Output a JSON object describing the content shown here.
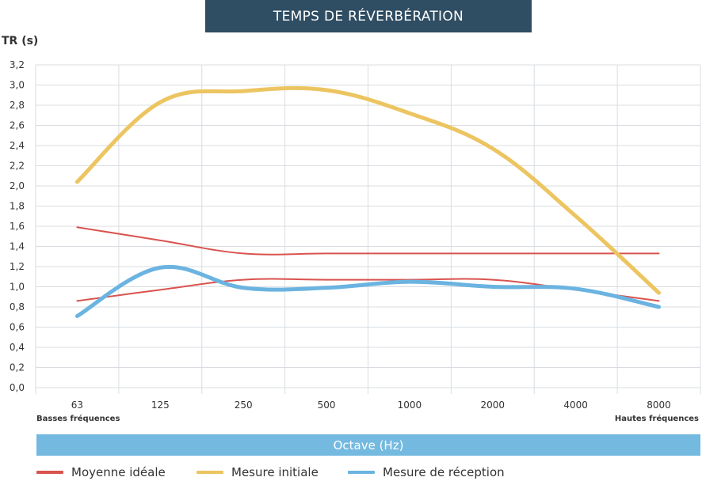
{
  "chart_data": {
    "type": "line",
    "title": "TEMPS DE RÉVERBÉRATION",
    "ylabel": "TR (s)",
    "xlabel": "Octave (Hz)",
    "x_note_left": "Basses fréquences",
    "x_note_right": "Hautes fréquences",
    "categories": [
      "63",
      "125",
      "250",
      "500",
      "1000",
      "2000",
      "4000",
      "8000"
    ],
    "ylim": [
      0,
      3.2
    ],
    "yticks": [
      "0,0",
      "0,2",
      "0,4",
      "0,6",
      "0,8",
      "1,0",
      "1,2",
      "1,4",
      "1,6",
      "1,8",
      "2,0",
      "2,2",
      "2,4",
      "2,6",
      "2,8",
      "3,0",
      "3,2"
    ],
    "grid": true,
    "legend_position": "bottom",
    "series": [
      {
        "name": "Moyenne idéale",
        "color": "#d9534f",
        "values": [
          1.59,
          1.46,
          1.33,
          1.33,
          1.33,
          1.33,
          1.33,
          1.33
        ]
      },
      {
        "name": "Moyenne idéale (borne basse)",
        "color": "#d9534f",
        "values": [
          0.86,
          0.97,
          1.07,
          1.07,
          1.07,
          1.07,
          0.97,
          0.86
        ],
        "legend": false
      },
      {
        "name": "Mesure initiale",
        "color": "#ecc561",
        "values": [
          2.04,
          2.83,
          2.94,
          2.95,
          2.72,
          2.37,
          1.7,
          0.94
        ]
      },
      {
        "name": "Mesure de réception",
        "color": "#6bb3e0",
        "values": [
          0.71,
          1.19,
          0.99,
          0.99,
          1.05,
          1.0,
          0.98,
          0.8
        ]
      }
    ]
  }
}
